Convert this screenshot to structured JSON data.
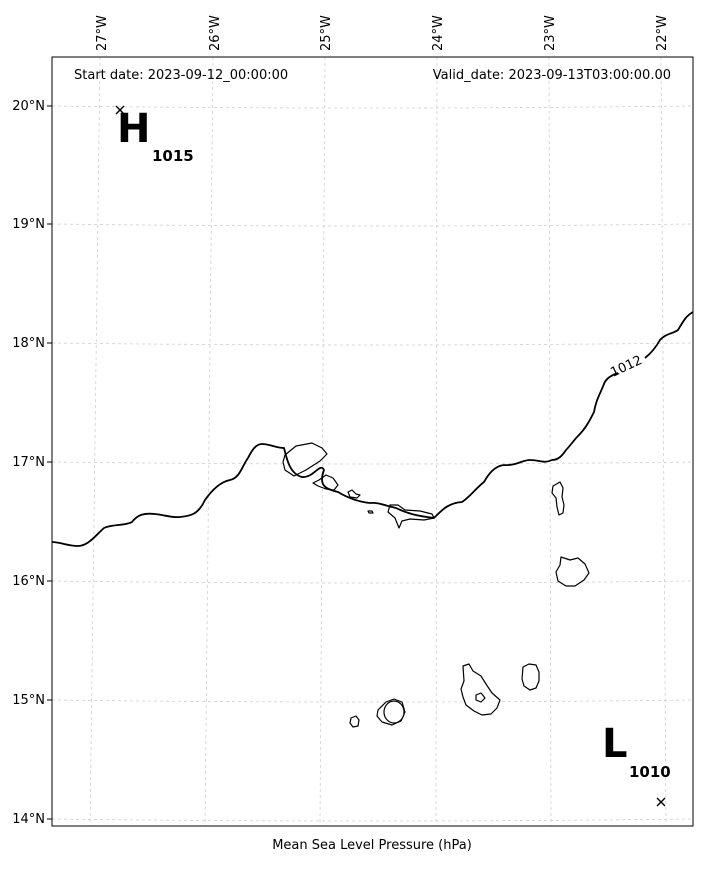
{
  "header": {
    "start_date": "Start date: 2023-09-12_00:00:00",
    "valid_date": "Valid_date: 2023-09-13T03:00:00.00"
  },
  "caption": "Mean Sea Level Pressure (hPa)",
  "axes": {
    "lon_labels": [
      "27°W",
      "26°W",
      "25°W",
      "24°W",
      "23°W",
      "22°W"
    ],
    "lat_labels": [
      "20°N",
      "19°N",
      "18°N",
      "17°N",
      "16°N",
      "15°N",
      "14°N"
    ]
  },
  "pressure_centers": [
    {
      "type": "H",
      "value": "1015"
    },
    {
      "type": "L",
      "value": "1010"
    }
  ],
  "contours": [
    {
      "level": "1012"
    }
  ],
  "colors": {
    "line": "#000000",
    "grid": "#cfcfcf",
    "background": "#ffffff"
  }
}
